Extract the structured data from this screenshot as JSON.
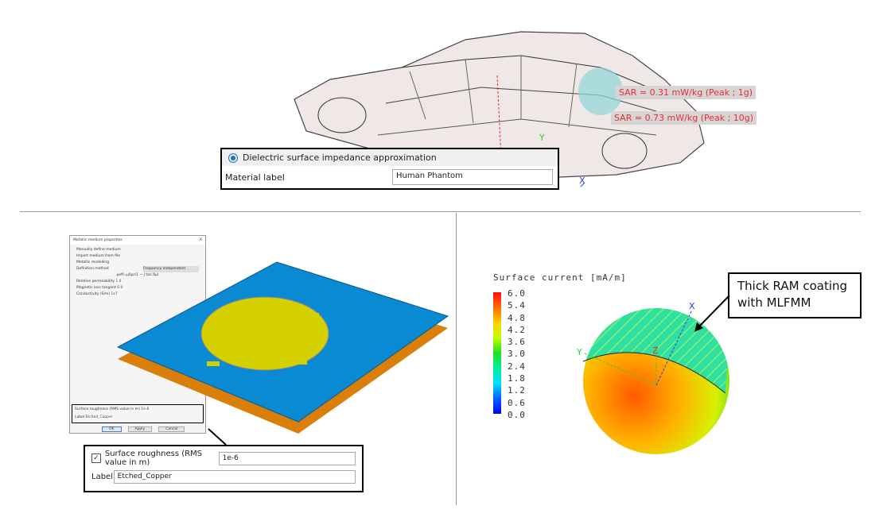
{
  "car_panel": {
    "sar_labels": [
      "SAR = 0.31 mW/kg (Peak ; 1g)",
      "SAR = 0.73 mW/kg (Peak ; 10g)"
    ],
    "callout": {
      "radio_label": "Dielectric surface impedance approximation",
      "material_label": "Material label",
      "material_value": "Human Phantom"
    },
    "axes": [
      "X",
      "Y"
    ]
  },
  "metal_panel": {
    "dialog": {
      "title": "Metallic medium properties",
      "close": "X",
      "options": [
        "Manually define medium",
        "Import medium from file"
      ],
      "section": "Metallic modelling",
      "definition_method_label": "Definition method",
      "definition_method_value": "Frequency independent",
      "formula": "μeff=μ0μr(1 − j tan δμ)",
      "fields": [
        {
          "label": "Relative permeability",
          "value": "1.0"
        },
        {
          "label": "Magnetic loss tangent",
          "value": "0.0"
        },
        {
          "label": "Conductivity (S/m)",
          "value": "1e7"
        }
      ],
      "roughness_label": "Surface roughness (RMS value in m)",
      "roughness_value": "1e-6",
      "label_label": "Label",
      "label_value": "Etched_Copper",
      "buttons": [
        "OK",
        "Apply",
        "Cancel"
      ]
    },
    "callout": {
      "roughness_label": "Surface roughness (RMS value in m)",
      "roughness_value": "1e-6",
      "label_label": "Label",
      "label_value": "Etched_Copper",
      "checked": true
    }
  },
  "sphere_panel": {
    "colorbar_title": "Surface current [mA/m]",
    "colorbar_ticks": [
      "6.0",
      "5.4",
      "4.8",
      "4.2",
      "3.6",
      "3.0",
      "2.4",
      "1.8",
      "1.2",
      "0.6",
      "0.0"
    ],
    "annotation": "Thick RAM coating with MLFMM",
    "axes": [
      "X",
      "Y",
      "Z"
    ]
  }
}
